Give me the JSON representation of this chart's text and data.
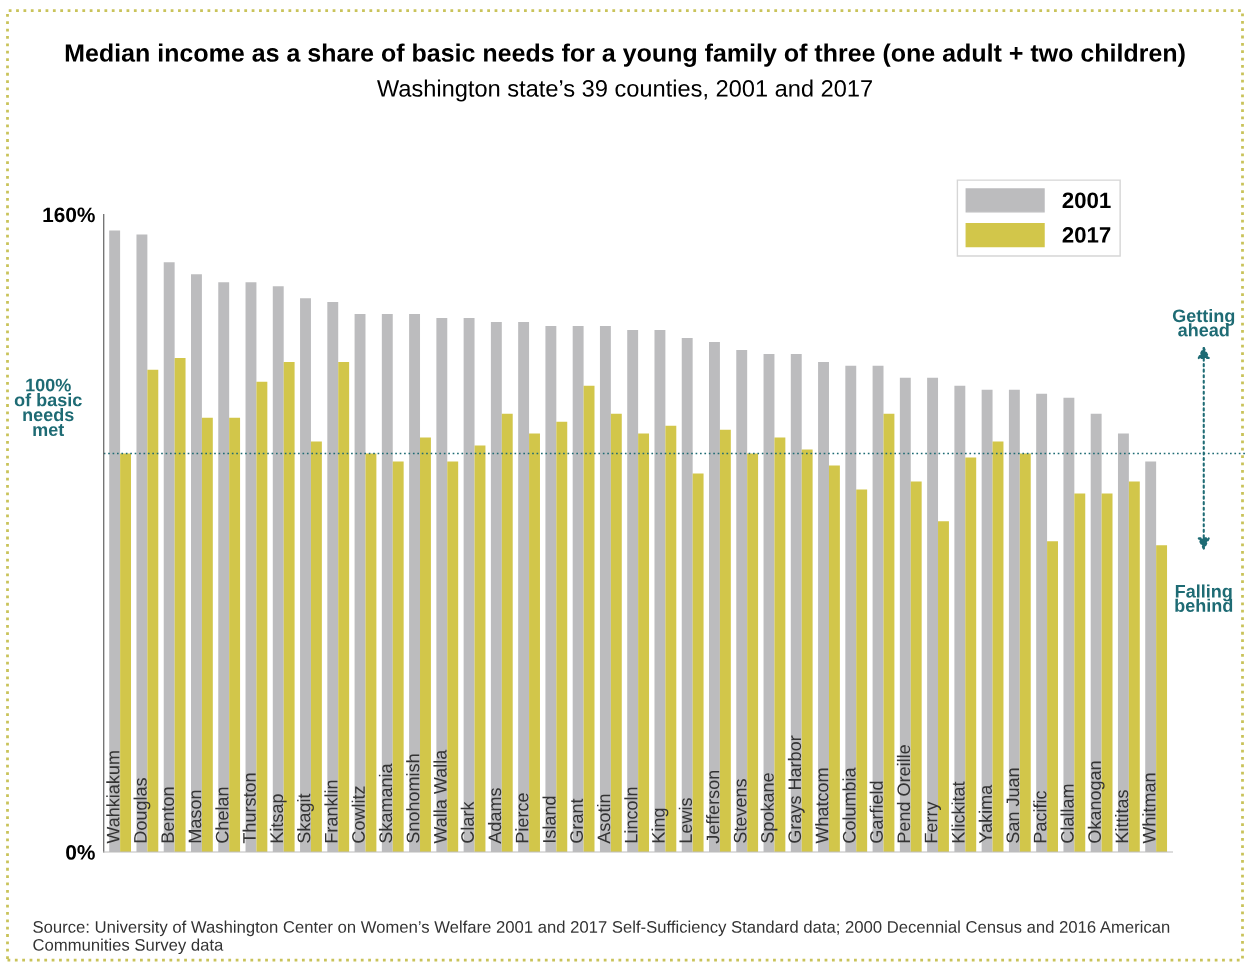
{
  "chart_data": {
    "type": "bar",
    "title": "Median income as a share of basic needs for a young family of three (one adult + two children)",
    "subtitle": "Washington state’s 39 counties, 2001 and 2017",
    "categories": [
      "Wahkiakum",
      "Douglas",
      "Benton",
      "Mason",
      "Chelan",
      "Thurston",
      "Kitsap",
      "Skagit",
      "Franklin",
      "Cowlitz",
      "Skamania",
      "Snohomish",
      "Walla Walla",
      "Clark",
      "Adams",
      "Pierce",
      "Island",
      "Grant",
      "Asotin",
      "Lincoln",
      "King",
      "Lewis",
      "Jefferson",
      "Stevens",
      "Spokane",
      "Grays Harbor",
      "Whatcom",
      "Columbia",
      "Garfield",
      "Pend Oreille",
      "Ferry",
      "Klickitat",
      "Yakima",
      "San Juan",
      "Pacific",
      "Clallam",
      "Okanogan",
      "Kittitas",
      "Whitman"
    ],
    "series": [
      {
        "name": "2001",
        "color": "#bcbcbe",
        "values": [
          156,
          155,
          148,
          145,
          143,
          143,
          142,
          139,
          138,
          135,
          135,
          135,
          134,
          134,
          133,
          133,
          132,
          132,
          132,
          131,
          131,
          129,
          128,
          126,
          125,
          125,
          123,
          122,
          122,
          119,
          119,
          117,
          116,
          116,
          115,
          114,
          110,
          105,
          98
        ]
      },
      {
        "name": "2017",
        "color": "#d2c64a",
        "values": [
          100,
          121,
          124,
          109,
          109,
          118,
          123,
          103,
          123,
          100,
          98,
          104,
          98,
          102,
          110,
          105,
          108,
          117,
          110,
          105,
          107,
          95,
          106,
          100,
          104,
          101,
          97,
          91,
          110,
          93,
          83,
          99,
          103,
          100,
          78,
          90,
          90,
          93,
          77
        ]
      }
    ],
    "ylim": [
      0,
      160
    ],
    "yticks": [
      {
        "value": 0,
        "label": "0%"
      },
      {
        "value": 160,
        "label": "160%"
      }
    ],
    "ref_lines": [
      {
        "axis": "y",
        "value": 100,
        "label": "100%\nof basic\nneeds\nmet",
        "color": "#1e6b74",
        "line_style": "dotted"
      }
    ],
    "annotations": [
      "Getting\nahead",
      "Falling\nbehind",
      "Source: University of Washington Center on Women’s Welfare 2001 and 2017 Self-Sufficiency Standard data; 2000 Decennial Census and 2016 American Communities Survey data"
    ],
    "legend": "top right",
    "grid": false
  }
}
